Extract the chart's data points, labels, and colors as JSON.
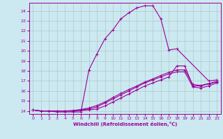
{
  "xlabel": "Windchill (Refroidissement éolien,°C)",
  "bg_color": "#cce8f0",
  "grid_color": "#aacccc",
  "line_color": "#990099",
  "xlim": [
    -0.5,
    23.5
  ],
  "ylim": [
    13.7,
    24.8
  ],
  "yticks": [
    14,
    15,
    16,
    17,
    18,
    19,
    20,
    21,
    22,
    23,
    24
  ],
  "xticks": [
    0,
    1,
    2,
    3,
    4,
    5,
    6,
    7,
    8,
    9,
    10,
    11,
    12,
    13,
    14,
    15,
    16,
    17,
    18,
    19,
    20,
    21,
    22,
    23
  ],
  "line1_x": [
    0,
    1,
    2,
    3,
    4,
    5,
    6,
    7,
    8,
    9,
    10,
    11,
    12,
    13,
    14,
    15,
    16,
    17,
    18,
    22,
    23
  ],
  "line1_y": [
    14.1,
    14.0,
    14.0,
    13.9,
    13.9,
    13.9,
    13.9,
    18.1,
    19.7,
    21.2,
    22.1,
    23.2,
    23.8,
    24.3,
    24.5,
    24.5,
    23.2,
    20.1,
    20.2,
    17.0,
    17.1
  ],
  "line2_x": [
    0,
    1,
    2,
    3,
    4,
    5,
    6,
    7,
    8,
    9,
    10,
    11,
    12,
    13,
    14,
    15,
    16,
    17,
    18,
    19,
    20,
    21,
    22,
    23
  ],
  "line2_y": [
    14.1,
    14.0,
    14.0,
    14.0,
    14.0,
    14.0,
    14.05,
    14.1,
    14.2,
    14.5,
    14.9,
    15.3,
    15.7,
    16.1,
    16.5,
    16.8,
    17.1,
    17.4,
    18.5,
    18.5,
    16.5,
    16.5,
    16.7,
    16.9
  ],
  "line3_x": [
    0,
    1,
    2,
    3,
    4,
    5,
    6,
    7,
    8,
    9,
    10,
    11,
    12,
    13,
    14,
    15,
    16,
    17,
    18,
    19,
    20,
    21,
    22,
    23
  ],
  "line3_y": [
    14.1,
    14.0,
    14.0,
    14.0,
    14.0,
    14.0,
    14.1,
    14.2,
    14.4,
    14.8,
    15.2,
    15.6,
    16.0,
    16.4,
    16.8,
    17.1,
    17.4,
    17.7,
    17.9,
    17.9,
    16.4,
    16.3,
    16.5,
    16.8
  ],
  "line4_x": [
    0,
    1,
    2,
    3,
    4,
    5,
    6,
    7,
    8,
    9,
    10,
    11,
    12,
    13,
    14,
    15,
    16,
    17,
    18,
    19,
    20,
    21,
    22,
    23
  ],
  "line4_y": [
    14.1,
    14.0,
    14.0,
    14.0,
    14.0,
    14.05,
    14.15,
    14.3,
    14.55,
    14.9,
    15.35,
    15.75,
    16.15,
    16.5,
    16.9,
    17.2,
    17.55,
    17.85,
    18.1,
    18.1,
    16.65,
    16.55,
    16.75,
    16.95
  ],
  "marker": "+",
  "markersize": 3,
  "linewidth": 0.8
}
